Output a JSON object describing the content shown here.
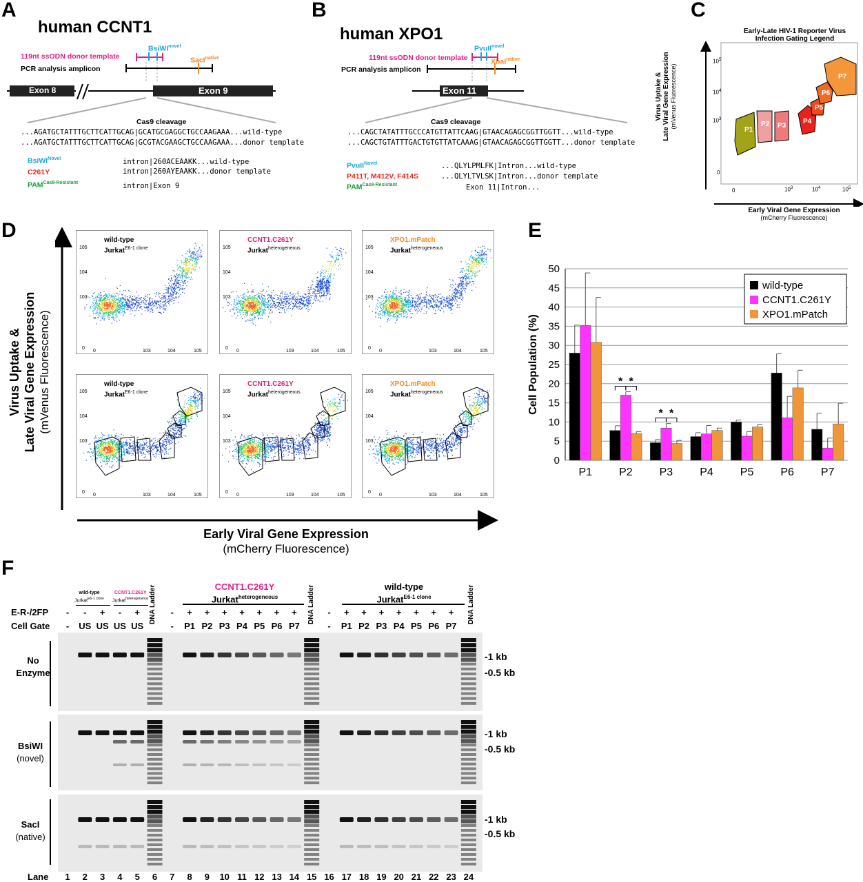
{
  "panel_labels": {
    "A": "A",
    "B": "B",
    "C": "C",
    "D": "D",
    "E": "E",
    "F": "F"
  },
  "panelA": {
    "title": "human CCNT1",
    "donor": "119nt ssODN donor template",
    "amplicon": "PCR analysis amplicon",
    "site_novel": "BsiWI",
    "site_novel_sup": "novel",
    "site_native": "SacI",
    "site_native_sup": "native",
    "exon8": "Exon 8",
    "exon9": "Exon 9",
    "cleavage": "Cas9 cleavage",
    "seq_wt": "...AGATGCTATTTGCTTCATTGCAG|GCATGCGAGGCTGCCAAGAAA...",
    "seq_wt_label": "wild-type",
    "seq_donor": "...AGATGCTATTTGCTTCATTGCAG|GCGTACGAAGCTGCCAAGAAA...",
    "seq_donor_label": "donor template",
    "legend1": "BsiWI",
    "legend1_sup": "Novel",
    "legend2": "C261Y",
    "legend3": "PAM",
    "legend3_sup": "Cas9-Resistant",
    "prot_wt": "intron|260ACEAAKK...wild-type",
    "prot_donor": "intron|260AYEAAKK...donor template",
    "prot_exon": "intron|Exon 9"
  },
  "panelB": {
    "title": "human XPO1",
    "donor": "119nt ssODN donor template",
    "amplicon": "PCR analysis amplicon",
    "site_novel": "PvuII",
    "site_novel_sup": "novel",
    "site_native": "XbaI",
    "site_native_sup": "native",
    "exon11": "Exon 11",
    "cleavage": "Cas9 cleavage",
    "seq_wt": "...CAGCTATATTTGCCCATGTTATTCAAG|GTAACAGAGCGGTTGGTT...",
    "seq_wt_label": "wild-type",
    "seq_donor": "...CAGCTGTATTTGACTGTGTTATCAAAG|GTAACAGAGCGGTTGGTT...",
    "seq_donor_label": "donor template",
    "legend1": "PvuII",
    "legend1_sup": "Novel",
    "legend2": "P411T, M412V, F414S",
    "legend3": "PAM",
    "legend3_sup": "Cas9-Resistant",
    "prot_wt": "...QLYLPMLFK|Intron...wild-type",
    "prot_donor": "...QLYLTVLSK|Intron...donor template",
    "prot_exon": "Exon 11|Intron..."
  },
  "panelC": {
    "title1": "Early-Late HIV-1 Reporter Virus",
    "title2": "Infection Gating Legend",
    "ylabel1": "Virus Uptake &",
    "ylabel2": "Late Viral Gene Expression",
    "ylabel3": "(mVenus Fluorescence)",
    "xlabel1": "Early Viral Gene Expression",
    "xlabel2": "(mCherry Fluorescence)",
    "gates": [
      "P1",
      "P2",
      "P3",
      "P4",
      "P5",
      "P6",
      "P7"
    ],
    "gate_colors": [
      "#a3a319",
      "#f0a0a0",
      "#ee7a7a",
      "#e8231c",
      "#ee4a1c",
      "#f06a26",
      "#f4963a"
    ],
    "yticks": [
      "10",
      "10",
      "10",
      "0"
    ],
    "ytick_exp": [
      "5",
      "4",
      "3",
      ""
    ],
    "xticks": [
      "0",
      "10",
      "10",
      "10"
    ],
    "xtick_exp": [
      "",
      "3",
      "4",
      "5"
    ]
  },
  "panelD": {
    "ylabel1": "Virus Uptake &",
    "ylabel2": "Late Viral Gene Expression",
    "ylabel3": "(mVenus Fluorescence)",
    "xlabel1": "Early Viral Gene Expression",
    "xlabel2": "(mCherry Fluorescence)",
    "plots": [
      {
        "name": "wild-type",
        "name_color": "#000000",
        "sub": "Jurkat",
        "sup": "E6-1 clone"
      },
      {
        "name": "CCNT1.C261Y",
        "name_color": "#e0208a",
        "sub": "Jurkat",
        "sup": "heterogeneous"
      },
      {
        "name": "XPO1.mPatch",
        "name_color": "#f08a24",
        "sub": "Jurkat",
        "sup": "heterogeneous"
      }
    ]
  },
  "chart_data": {
    "type": "bar",
    "categories": [
      "P1",
      "P2",
      "P3",
      "P4",
      "P5",
      "P6",
      "P7"
    ],
    "series": [
      {
        "name": "wild-type",
        "color": "#000000",
        "values": [
          28,
          7.8,
          4.6,
          6.2,
          10,
          22.8,
          8.1
        ],
        "errors": [
          7.3,
          1.2,
          0.8,
          1,
          0.5,
          5,
          4.2
        ]
      },
      {
        "name": "CCNT1.C261Y",
        "color": "#ff33ff",
        "values": [
          35.2,
          17,
          8.4,
          6.9,
          6.3,
          11.1,
          3.2
        ],
        "errors": [
          13.7,
          0.9,
          1.2,
          2.2,
          1.2,
          5.6,
          2.6
        ]
      },
      {
        "name": "XPO1.mPatch",
        "color": "#f0963a",
        "values": [
          30.8,
          7,
          4.4,
          7.8,
          8.7,
          18.9,
          9.5
        ],
        "errors": [
          11.7,
          0.5,
          0.8,
          0.6,
          0.6,
          4.6,
          5.4
        ]
      }
    ],
    "ylabel": "Cell Population (%)",
    "ylim": [
      0,
      50
    ],
    "yticks": [
      0,
      5,
      10,
      15,
      20,
      25,
      30,
      35,
      40,
      45,
      50
    ],
    "significance": "*",
    "legend": "top-right"
  },
  "panelF": {
    "top_left_groups": [
      {
        "name": "wild-type",
        "sub": "Jurkat",
        "sup": "E6-1 clone"
      },
      {
        "name": "CCNT1.C261Y",
        "sub": "Jurkat",
        "sup": "heterogeneous"
      }
    ],
    "group_ccnt1_name": "CCNT1.C261Y",
    "group_ccnt1_sub": "Jurkat",
    "group_ccnt1_sup": "heterogeneous",
    "group_wt_name": "wild-type",
    "group_wt_sub": "Jurkat",
    "group_wt_sup": "E6-1 clone",
    "ladder": "DNA Ladder",
    "row_err_label": "E-R-/2FP",
    "row_gate_label": "Cell Gate",
    "err_values": [
      "-",
      "-",
      "+",
      "-",
      "+",
      "",
      "",
      "-",
      "+",
      "+",
      "+",
      "+",
      "+",
      "+",
      "+",
      "",
      "",
      "-",
      "+",
      "+",
      "+",
      "+",
      "+",
      "+",
      "+"
    ],
    "gate_values": [
      "-",
      "US",
      "US",
      "US",
      "US",
      "",
      "",
      "-",
      "P1",
      "P2",
      "P3",
      "P4",
      "P5",
      "P6",
      "P7",
      "",
      "",
      "-",
      "P1",
      "P2",
      "P3",
      "P4",
      "P5",
      "P6",
      "P7"
    ],
    "gels": [
      {
        "label1": "No",
        "label2": "Enzyme",
        "italic": false
      },
      {
        "label1": "BsiWI",
        "label2": "(novel)",
        "italic": false
      },
      {
        "label1": "SacI",
        "label2": "(native)",
        "italic": false
      }
    ],
    "marker_1kb": "-1 kb",
    "marker_05kb": "-0.5 kb",
    "lane_label": "Lane",
    "lanes": [
      "1",
      "2",
      "3",
      "4",
      "5",
      "6",
      "7",
      "8",
      "9",
      "10",
      "11",
      "12",
      "13",
      "14",
      "15",
      "16",
      "17",
      "18",
      "19",
      "20",
      "21",
      "22",
      "23",
      "24"
    ]
  }
}
